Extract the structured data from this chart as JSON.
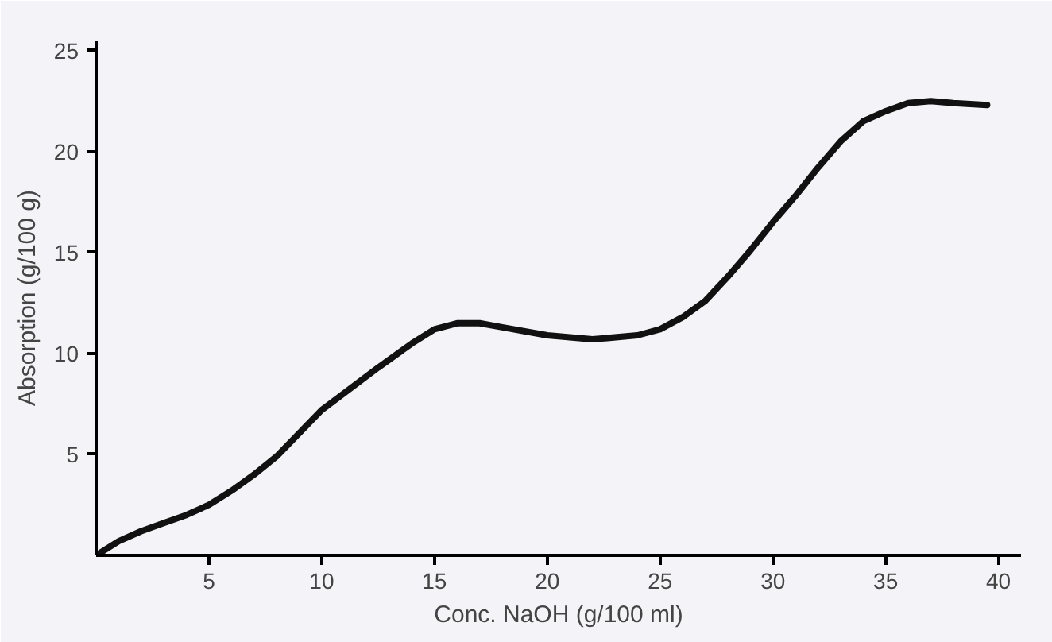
{
  "chart_data": {
    "type": "line",
    "xlabel": "Conc. NaOH (g/100 ml)",
    "ylabel": "Absorption (g/100 g)",
    "x": [
      0,
      1,
      2,
      3,
      4,
      5,
      6,
      7,
      8,
      10,
      12.5,
      14,
      15,
      16,
      17,
      18,
      20,
      22,
      24,
      25,
      26,
      27,
      28,
      29,
      30,
      31,
      32,
      33,
      34,
      35,
      36,
      37,
      38,
      39.5
    ],
    "series": [
      {
        "color": "#111111",
        "values": [
          0,
          0.7,
          1.2,
          1.6,
          2.0,
          2.5,
          3.2,
          4.0,
          4.9,
          7.2,
          9.3,
          10.5,
          11.2,
          11.5,
          11.5,
          11.3,
          10.9,
          10.7,
          10.9,
          11.2,
          11.8,
          12.6,
          13.8,
          15.1,
          16.5,
          17.8,
          19.2,
          20.5,
          21.5,
          22.0,
          22.4,
          22.5,
          22.4,
          22.3
        ]
      }
    ],
    "xlim": [
      0,
      41
    ],
    "ylim": [
      0,
      25.5
    ],
    "xticks": [
      5,
      10,
      15,
      20,
      25,
      30,
      35,
      40
    ],
    "yticks": [
      5,
      10,
      15,
      20,
      25
    ],
    "grid": false,
    "marker": "none",
    "line_style": "solid"
  }
}
